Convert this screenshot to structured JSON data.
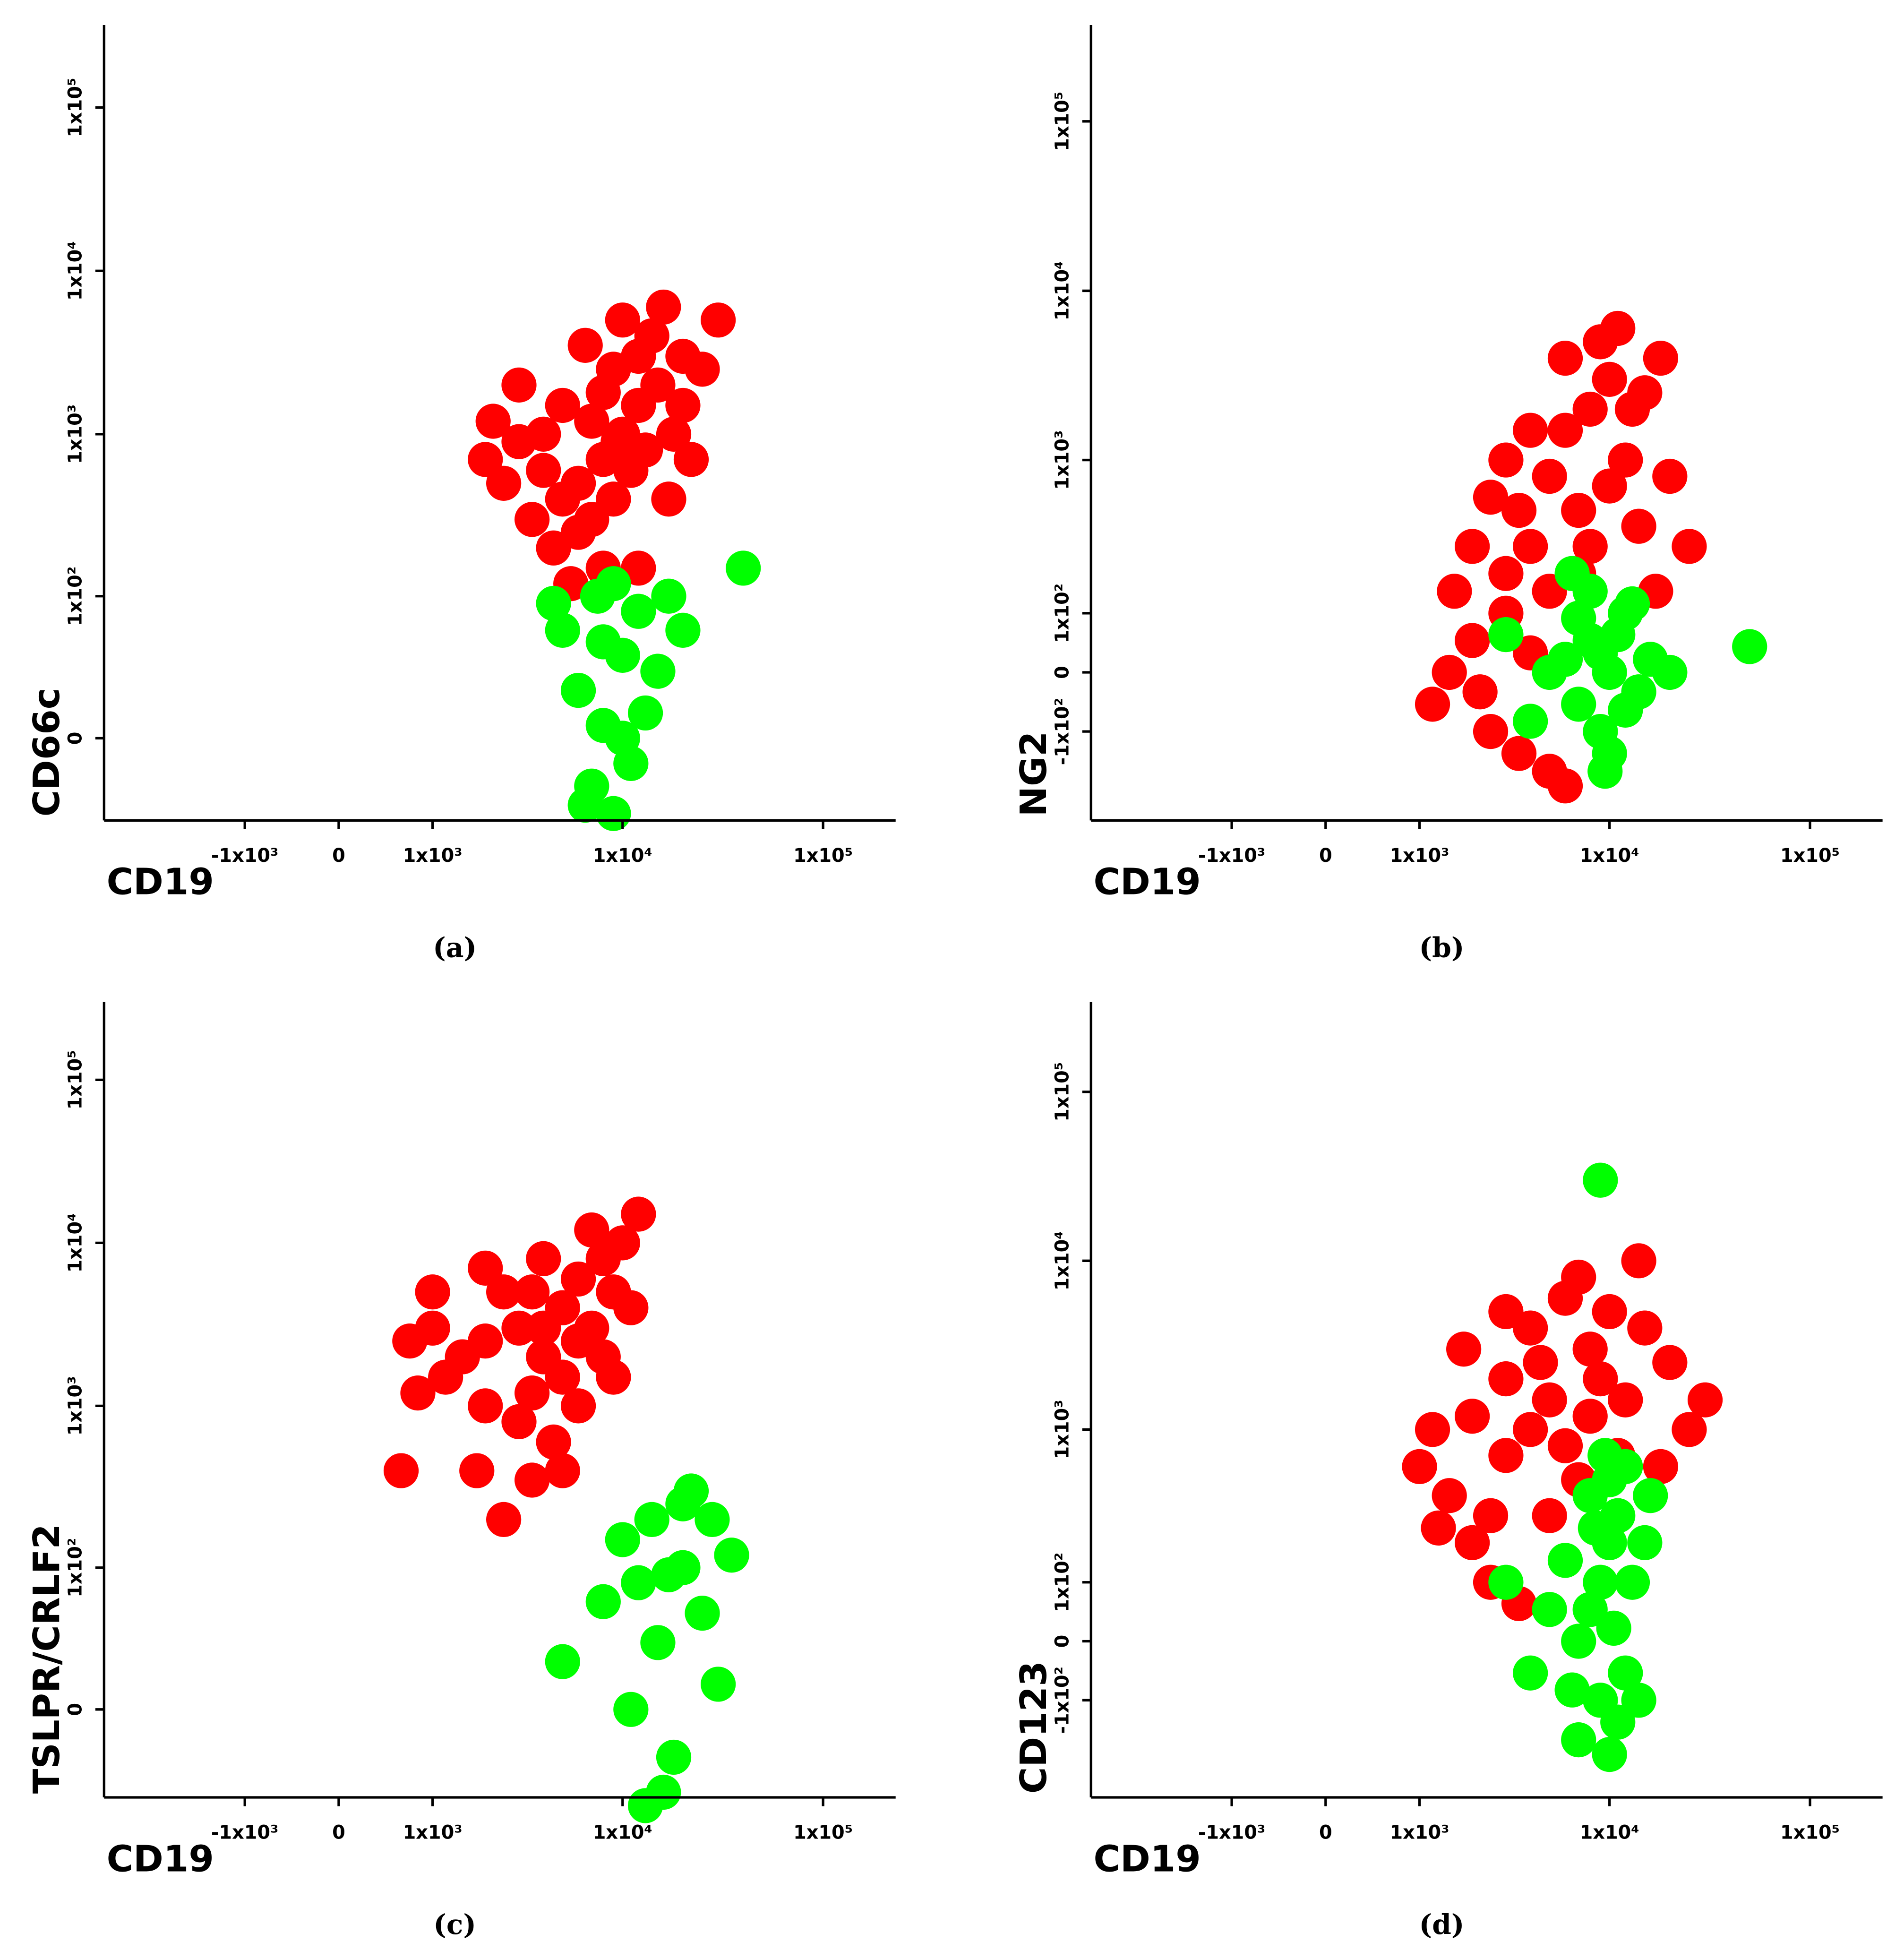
{
  "chart_data": [
    {
      "type": "scatter",
      "x_label": "CD19",
      "y_label": "CD66c",
      "caption": "(a)",
      "xscale": "biexponential",
      "yscale": "biexponential",
      "xlim": [
        -5500,
        230000
      ],
      "ylim": [
        -37,
        320000
      ],
      "xticks": [
        {
          "value": -1000,
          "label": "-1x10³"
        },
        0,
        {
          "value": 1000,
          "label": "1x10³"
        },
        {
          "value": 10000,
          "label": "1x10⁴"
        },
        {
          "value": 100000,
          "label": "1x10⁵"
        }
      ],
      "yticks": [
        0,
        {
          "value": 100,
          "label": "1x10²"
        },
        {
          "value": 1000,
          "label": "1x10³"
        },
        {
          "value": 10000,
          "label": "1x10⁴"
        },
        {
          "value": 100000,
          "label": "1x10⁵"
        }
      ],
      "series": [
        {
          "color": "#ff0000",
          "x": [
            10000,
            8000,
            12000,
            6000,
            15000,
            20000,
            5000,
            7000,
            9000,
            14000,
            4000,
            3000,
            2500,
            3500,
            6000,
            11000,
            18000,
            25000,
            16000,
            12000,
            8000,
            5000,
            4500,
            9000,
            13000,
            20000,
            7000,
            3000,
            6500,
            10000,
            2000,
            2200,
            30000,
            12000,
            8000,
            5500,
            17000,
            4000,
            9500,
            22000
          ],
          "y": [
            1000,
            700,
            1500,
            500,
            2000,
            3000,
            400,
            1200,
            2500,
            4000,
            600,
            900,
            500,
            300,
            250,
            600,
            1000,
            2500,
            6000,
            3000,
            1800,
            1500,
            200,
            400,
            800,
            1500,
            300,
            2000,
            3500,
            5000,
            700,
            1200,
            5000,
            150,
            150,
            120,
            400,
            1000,
            900,
            700
          ]
        },
        {
          "color": "#00ff00",
          "x": [
            8000,
            6000,
            10000,
            7000,
            12000,
            9000,
            5000,
            15000,
            11000,
            7500,
            13000,
            6500,
            20000,
            4500,
            9000,
            10000,
            8000,
            17000,
            40000
          ],
          "y": [
            50,
            20,
            0,
            -20,
            80,
            120,
            60,
            30,
            -10,
            100,
            10,
            -30,
            60,
            90,
            -35,
            40,
            5,
            100,
            150
          ]
        }
      ]
    },
    {
      "type": "scatter",
      "x_label": "CD19",
      "y_label": "NG2",
      "caption": "(b)",
      "xscale": "biexponential",
      "yscale": "biexponential",
      "xlim": [
        -5500,
        230000
      ],
      "ylim": [
        -390,
        370000
      ],
      "xticks": [
        {
          "value": -1000,
          "label": "-1x10³"
        },
        0,
        {
          "value": 1000,
          "label": "1x10³"
        },
        {
          "value": 10000,
          "label": "1x10⁴"
        },
        {
          "value": 100000,
          "label": "1x10⁵"
        }
      ],
      "yticks": [
        {
          "value": -100,
          "label": "-1x10²"
        },
        0,
        {
          "value": 100,
          "label": "1x10²"
        },
        {
          "value": 1000,
          "label": "1x10³"
        },
        {
          "value": 10000,
          "label": "1x10⁴"
        },
        {
          "value": 100000,
          "label": "1x10⁵"
        }
      ],
      "series": [
        {
          "color": "#ff0000",
          "x": [
            8000,
            10000,
            6000,
            12000,
            7000,
            15000,
            5000,
            9000,
            11000,
            6000,
            14000,
            4000,
            3000,
            2000,
            1500,
            1200,
            2500,
            3500,
            5000,
            4000,
            3000,
            2000,
            1600,
            2500,
            3000,
            4000,
            7000,
            17000,
            20000,
            13000,
            25000,
            6000,
            5000,
            3500,
            18000,
            10000,
            8000,
            2200
          ],
          "y": [
            2000,
            3000,
            1500,
            1000,
            500,
            2500,
            800,
            5000,
            6000,
            4000,
            400,
            300,
            100,
            50,
            0,
            -50,
            -100,
            -150,
            -200,
            30,
            200,
            300,
            150,
            600,
            1000,
            1500,
            200,
            150,
            800,
            2000,
            300,
            -250,
            150,
            500,
            4000,
            700,
            300,
            -30
          ]
        },
        {
          "color": "#00ff00",
          "x": [
            8000,
            10000,
            7000,
            12000,
            6000,
            9000,
            11000,
            14000,
            5000,
            8000,
            10000,
            13000,
            7000,
            16000,
            4000,
            3000,
            9000,
            12000,
            20000,
            6500,
            9500,
            50000
          ],
          "y": [
            50,
            0,
            -50,
            100,
            20,
            -100,
            60,
            -30,
            0,
            150,
            -150,
            120,
            90,
            20,
            -80,
            60,
            30,
            -60,
            0,
            200,
            -200,
            40
          ]
        }
      ]
    },
    {
      "type": "scatter",
      "x_label": "CD19",
      "y_label": "TSLPR/CRLF2",
      "caption": "(c)",
      "xscale": "biexponential",
      "yscale": "biexponential",
      "xlim": [
        -5500,
        230000
      ],
      "ylim": [
        -41,
        300000
      ],
      "xticks": [
        {
          "value": -1000,
          "label": "-1x10³"
        },
        0,
        {
          "value": 1000,
          "label": "1x10³"
        },
        {
          "value": 10000,
          "label": "1x10⁴"
        },
        {
          "value": 100000,
          "label": "1x10⁵"
        }
      ],
      "yticks": [
        0,
        {
          "value": 100,
          "label": "1x10²"
        },
        {
          "value": 1000,
          "label": "1x10³"
        },
        {
          "value": 10000,
          "label": "1x10⁴"
        },
        {
          "value": 100000,
          "label": "1x10⁵"
        }
      ],
      "series": [
        {
          "color": "#ff0000",
          "x": [
            3000,
            4000,
            5000,
            2000,
            6000,
            8000,
            1500,
            1000,
            700,
            3500,
            5000,
            7000,
            10000,
            9000,
            2500,
            4000,
            3000,
            2000,
            1200,
            4500,
            6000,
            5000,
            3500,
            8000,
            11000,
            2000,
            1000,
            800,
            4000,
            6000,
            1800,
            2500,
            3500,
            12000,
            7000,
            9000,
            600
          ],
          "y": [
            3000,
            2000,
            4000,
            2500,
            6000,
            8000,
            2000,
            3000,
            2500,
            1200,
            1500,
            3000,
            10000,
            5000,
            5000,
            8000,
            800,
            1000,
            1500,
            600,
            1000,
            400,
            5000,
            2000,
            4000,
            7000,
            5000,
            1200,
            3000,
            2500,
            400,
            200,
            350,
            15000,
            12000,
            1500,
            400
          ]
        },
        {
          "color": "#00ff00",
          "x": [
            12000,
            15000,
            20000,
            10000,
            18000,
            25000,
            14000,
            30000,
            8000,
            16000,
            22000,
            11000,
            35000,
            13000,
            20000,
            17000,
            5000,
            28000
          ],
          "y": [
            80,
            30,
            100,
            150,
            -20,
            50,
            200,
            10,
            60,
            -40,
            300,
            0,
            120,
            -50,
            250,
            90,
            20,
            200
          ]
        }
      ]
    },
    {
      "type": "scatter",
      "x_label": "CD19",
      "y_label": "CD123",
      "caption": "(d)",
      "xscale": "biexponential",
      "yscale": "biexponential",
      "xlim": [
        -5500,
        230000
      ],
      "ylim": [
        -440,
        340000
      ],
      "xticks": [
        {
          "value": -1000,
          "label": "-1x10³"
        },
        0,
        {
          "value": 1000,
          "label": "1x10³"
        },
        {
          "value": 10000,
          "label": "1x10⁴"
        },
        {
          "value": 100000,
          "label": "1x10⁵"
        }
      ],
      "yticks": [
        {
          "value": -100,
          "label": "-1x10²"
        },
        0,
        {
          "value": 100,
          "label": "1x10²"
        },
        {
          "value": 1000,
          "label": "1x10³"
        },
        {
          "value": 10000,
          "label": "1x10⁴"
        },
        {
          "value": 100000,
          "label": "1x10⁵"
        }
      ],
      "series": [
        {
          "color": "#ff0000",
          "x": [
            5000,
            8000,
            10000,
            4000,
            3000,
            6000,
            2000,
            1200,
            1000,
            1500,
            2500,
            3000,
            7000,
            9000,
            12000,
            15000,
            20000,
            25000,
            18000,
            4000,
            6000,
            3000,
            2000,
            2500,
            3500,
            5000,
            14000,
            11000,
            8000,
            1800,
            30000,
            4500,
            7000,
            1300
          ],
          "y": [
            1500,
            3000,
            5000,
            1000,
            2000,
            800,
            1200,
            1000,
            600,
            400,
            300,
            700,
            8000,
            2000,
            1500,
            4000,
            2500,
            1000,
            600,
            4000,
            6000,
            5000,
            200,
            100,
            60,
            300,
            10000,
            700,
            1200,
            3000,
            1500,
            2500,
            500,
            250
          ]
        },
        {
          "color": "#00ff00",
          "x": [
            9000,
            10000,
            8000,
            11000,
            7000,
            12000,
            9000,
            10000,
            8000,
            6000,
            13000,
            11000,
            7000,
            15000,
            5000,
            9500,
            8500,
            10500,
            12000,
            14000,
            6500,
            16000,
            4000,
            10000,
            3000,
            9000
          ],
          "y": [
            100,
            200,
            50,
            300,
            0,
            -50,
            -100,
            500,
            400,
            150,
            100,
            -150,
            -200,
            200,
            50,
            700,
            250,
            20,
            600,
            -100,
            -80,
            400,
            -50,
            -250,
            100,
            30000
          ]
        }
      ]
    }
  ]
}
